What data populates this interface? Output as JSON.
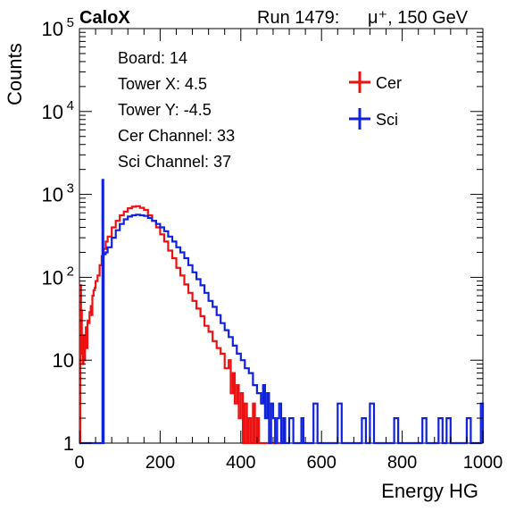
{
  "header": {
    "left": "CaloX",
    "right_run": "Run 1479:",
    "right_particle": "μ⁺, 150 GeV"
  },
  "info": {
    "lines": [
      "Board: 14",
      "Tower X: 4.5",
      "Tower Y: -4.5",
      "Cer Channel: 33",
      "Sci Channel: 37"
    ]
  },
  "chart_data": {
    "type": "line",
    "title": "",
    "xlabel": "Energy HG",
    "ylabel": "Counts",
    "xlim": [
      0,
      1000
    ],
    "ylim": [
      1,
      100000
    ],
    "yscale": "log",
    "x_ticks": [
      0,
      200,
      400,
      600,
      800,
      1000
    ],
    "y_ticks": [
      {
        "value": 1,
        "base": "1",
        "exp": ""
      },
      {
        "value": 10,
        "base": "10",
        "exp": ""
      },
      {
        "value": 100,
        "base": "10",
        "exp": "2"
      },
      {
        "value": 1000,
        "base": "10",
        "exp": "3"
      },
      {
        "value": 10000,
        "base": "10",
        "exp": "4"
      },
      {
        "value": 100000,
        "base": "10",
        "exp": "5"
      }
    ],
    "legend": {
      "position": "top-right"
    },
    "series": [
      {
        "name": "Cer",
        "color": "#ee1111",
        "points": [
          [
            0,
            1
          ],
          [
            2,
            80
          ],
          [
            4,
            40
          ],
          [
            6,
            12
          ],
          [
            8,
            9
          ],
          [
            10,
            20
          ],
          [
            12,
            10
          ],
          [
            14,
            18
          ],
          [
            16,
            25
          ],
          [
            18,
            14
          ],
          [
            20,
            30
          ],
          [
            22,
            28
          ],
          [
            25,
            38
          ],
          [
            28,
            45
          ],
          [
            30,
            35
          ],
          [
            32,
            60
          ],
          [
            35,
            70
          ],
          [
            38,
            75
          ],
          [
            40,
            90
          ],
          [
            45,
            105
          ],
          [
            50,
            140
          ],
          [
            55,
            180
          ],
          [
            60,
            220
          ],
          [
            65,
            270
          ],
          [
            70,
            310
          ],
          [
            80,
            400
          ],
          [
            90,
            480
          ],
          [
            100,
            560
          ],
          [
            110,
            620
          ],
          [
            120,
            680
          ],
          [
            130,
            710
          ],
          [
            140,
            720
          ],
          [
            150,
            690
          ],
          [
            160,
            650
          ],
          [
            170,
            560
          ],
          [
            180,
            480
          ],
          [
            190,
            400
          ],
          [
            200,
            330
          ],
          [
            210,
            270
          ],
          [
            220,
            210
          ],
          [
            230,
            170
          ],
          [
            240,
            130
          ],
          [
            250,
            105
          ],
          [
            260,
            82
          ],
          [
            270,
            65
          ],
          [
            280,
            52
          ],
          [
            290,
            42
          ],
          [
            300,
            34
          ],
          [
            310,
            26
          ],
          [
            320,
            22
          ],
          [
            330,
            17
          ],
          [
            340,
            14
          ],
          [
            350,
            12
          ],
          [
            360,
            8
          ],
          [
            370,
            10
          ],
          [
            375,
            4
          ],
          [
            380,
            7
          ],
          [
            385,
            3
          ],
          [
            390,
            5
          ],
          [
            395,
            2
          ],
          [
            400,
            4
          ],
          [
            405,
            1
          ],
          [
            410,
            3
          ],
          [
            415,
            1
          ],
          [
            420,
            2
          ],
          [
            425,
            1
          ],
          [
            430,
            3
          ],
          [
            435,
            1
          ],
          [
            440,
            2
          ],
          [
            445,
            1
          ],
          [
            450,
            1
          ],
          [
            455,
            1
          ],
          [
            460,
            1
          ],
          [
            470,
            1
          ],
          [
            480,
            1
          ],
          [
            490,
            1
          ],
          [
            500,
            1
          ]
        ]
      },
      {
        "name": "Sci",
        "color": "#1122dd",
        "points": [
          [
            0,
            1
          ],
          [
            50,
            1
          ],
          [
            56,
            1
          ],
          [
            57,
            1500
          ],
          [
            58,
            1500
          ],
          [
            59,
            1
          ],
          [
            60,
            190
          ],
          [
            65,
            200
          ],
          [
            70,
            230
          ],
          [
            80,
            300
          ],
          [
            90,
            370
          ],
          [
            100,
            440
          ],
          [
            110,
            500
          ],
          [
            120,
            540
          ],
          [
            130,
            560
          ],
          [
            140,
            570
          ],
          [
            150,
            560
          ],
          [
            160,
            550
          ],
          [
            170,
            520
          ],
          [
            180,
            480
          ],
          [
            190,
            440
          ],
          [
            200,
            400
          ],
          [
            210,
            360
          ],
          [
            220,
            310
          ],
          [
            230,
            270
          ],
          [
            240,
            230
          ],
          [
            250,
            200
          ],
          [
            260,
            170
          ],
          [
            270,
            140
          ],
          [
            280,
            115
          ],
          [
            290,
            95
          ],
          [
            300,
            80
          ],
          [
            310,
            65
          ],
          [
            320,
            52
          ],
          [
            330,
            44
          ],
          [
            340,
            35
          ],
          [
            350,
            28
          ],
          [
            360,
            23
          ],
          [
            370,
            19
          ],
          [
            380,
            15
          ],
          [
            390,
            12
          ],
          [
            400,
            10
          ],
          [
            410,
            8
          ],
          [
            420,
            7
          ],
          [
            430,
            5
          ],
          [
            440,
            4
          ],
          [
            450,
            3
          ],
          [
            455,
            5
          ],
          [
            460,
            2
          ],
          [
            465,
            4
          ],
          [
            470,
            1
          ],
          [
            475,
            3
          ],
          [
            480,
            2
          ],
          [
            485,
            1
          ],
          [
            490,
            2
          ],
          [
            495,
            3
          ],
          [
            500,
            1
          ],
          [
            505,
            2
          ],
          [
            510,
            1
          ],
          [
            520,
            2
          ],
          [
            530,
            1
          ],
          [
            540,
            1
          ],
          [
            550,
            2
          ],
          [
            555,
            1
          ],
          [
            560,
            1
          ],
          [
            570,
            1
          ],
          [
            580,
            3
          ],
          [
            590,
            1
          ],
          [
            600,
            1
          ],
          [
            610,
            1
          ],
          [
            620,
            1
          ],
          [
            630,
            1
          ],
          [
            640,
            3
          ],
          [
            650,
            1
          ],
          [
            700,
            2
          ],
          [
            710,
            1
          ],
          [
            720,
            3
          ],
          [
            730,
            1
          ],
          [
            780,
            2
          ],
          [
            790,
            1
          ],
          [
            800,
            1
          ],
          [
            850,
            2
          ],
          [
            860,
            1
          ],
          [
            870,
            1
          ],
          [
            890,
            2
          ],
          [
            900,
            1
          ],
          [
            910,
            2
          ],
          [
            920,
            1
          ],
          [
            960,
            2
          ],
          [
            970,
            1
          ],
          [
            990,
            1
          ],
          [
            995,
            3
          ],
          [
            1000,
            1
          ]
        ]
      }
    ]
  }
}
